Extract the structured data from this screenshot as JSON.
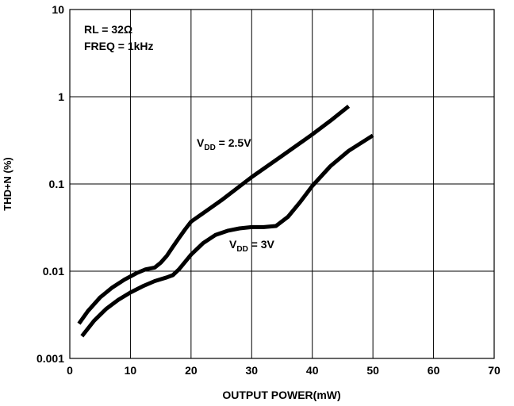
{
  "chart_data": {
    "type": "line",
    "title": "",
    "xlabel": "OUTPUT POWER(mW)",
    "ylabel": "THD+N (%)",
    "x_scale": "linear",
    "y_scale": "log",
    "xlim": [
      0,
      70
    ],
    "ylim": [
      0.001,
      10
    ],
    "x_ticks": [
      "0",
      "10",
      "20",
      "30",
      "40",
      "50",
      "60",
      "70"
    ],
    "y_ticks": [
      "0.001",
      "0.01",
      "0.1",
      "1",
      "10"
    ],
    "grid": true,
    "conditions": [
      "RL = 32Ω",
      "FREQ = 1kHz"
    ],
    "series": [
      {
        "name": "VDD = 2.5V",
        "label_main": "V",
        "label_sub": "DD",
        "label_rest": " = 2.5V",
        "x": [
          1.5,
          3,
          5,
          7,
          9,
          11,
          12.5,
          14,
          15,
          16,
          17,
          18,
          19,
          20,
          25,
          30,
          35,
          40,
          43,
          46
        ],
        "y": [
          0.0025,
          0.0035,
          0.005,
          0.0065,
          0.008,
          0.0095,
          0.0105,
          0.011,
          0.0125,
          0.015,
          0.019,
          0.024,
          0.03,
          0.037,
          0.065,
          0.12,
          0.21,
          0.37,
          0.53,
          0.78
        ]
      },
      {
        "name": "VDD = 3V",
        "label_main": "V",
        "label_sub": "DD",
        "label_rest": " = 3V",
        "x": [
          2,
          4,
          6,
          8,
          10,
          12,
          14,
          16,
          17,
          18,
          20,
          22,
          24,
          26,
          28,
          30,
          32,
          34,
          36,
          38,
          40,
          43,
          46,
          50
        ],
        "y": [
          0.0018,
          0.0027,
          0.0037,
          0.0047,
          0.0057,
          0.0067,
          0.0077,
          0.0085,
          0.009,
          0.0105,
          0.0155,
          0.021,
          0.026,
          0.029,
          0.031,
          0.032,
          0.032,
          0.033,
          0.042,
          0.062,
          0.095,
          0.16,
          0.24,
          0.36
        ]
      }
    ]
  }
}
